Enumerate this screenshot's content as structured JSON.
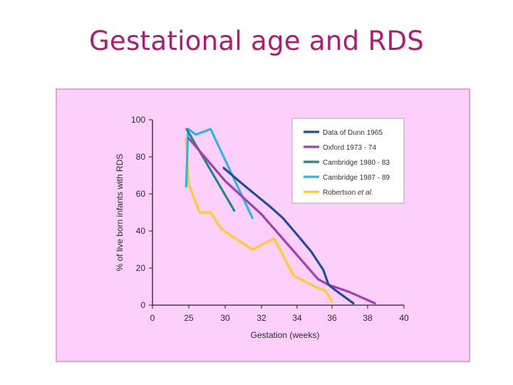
{
  "title": "Gestational age and RDS",
  "chart_data": {
    "type": "line",
    "xlabel": "Gestation (weeks)",
    "ylabel": "% of live born infants with RDS",
    "x_ticks": [
      "0",
      "25",
      "30",
      "32",
      "34",
      "36",
      "38",
      "40"
    ],
    "y_ticks": [
      0,
      20,
      40,
      60,
      80,
      100
    ],
    "ylim": [
      0,
      100
    ],
    "grid": false,
    "legend_position": "top-right",
    "series": [
      {
        "name": "Data of Dunn 1965",
        "color": "#1f4e9c",
        "points": [
          [
            29.8,
            74
          ],
          [
            31.0,
            65
          ],
          [
            32.5,
            53
          ],
          [
            33.2,
            47
          ],
          [
            34.0,
            38
          ],
          [
            34.8,
            29
          ],
          [
            35.5,
            19
          ],
          [
            35.8,
            11
          ],
          [
            36.2,
            8
          ],
          [
            37.2,
            1
          ]
        ]
      },
      {
        "name": "Oxford 1973 - 74",
        "color": "#a43fb0",
        "points": [
          [
            25.0,
            90
          ],
          [
            30.0,
            67
          ],
          [
            32.0,
            49
          ],
          [
            34.0,
            27
          ],
          [
            35.2,
            14
          ],
          [
            35.8,
            11
          ],
          [
            37.0,
            7
          ],
          [
            38.4,
            1
          ]
        ]
      },
      {
        "name": "Cambridge 1980 - 83",
        "color": "#218a87",
        "points": [
          [
            23.5,
            95
          ],
          [
            30.5,
            51
          ]
        ]
      },
      {
        "name": "Cambridge 1987 - 89",
        "color": "#29b6ea",
        "points": [
          [
            23.2,
            64
          ],
          [
            24.5,
            95
          ],
          [
            26.0,
            92
          ],
          [
            28.0,
            95
          ],
          [
            31.5,
            47
          ]
        ]
      },
      {
        "name": "Robertson et al.",
        "name_prefix": "Robertson",
        "name_suffix": "et al.",
        "color": "#ffcc29",
        "points": [
          [
            23.2,
            90
          ],
          [
            24.2,
            75
          ],
          [
            25.0,
            65
          ],
          [
            26.5,
            50
          ],
          [
            28.0,
            50
          ],
          [
            29.5,
            41
          ],
          [
            31.5,
            30
          ],
          [
            32.7,
            36
          ],
          [
            33.8,
            16
          ],
          [
            35.0,
            10
          ],
          [
            35.6,
            8
          ],
          [
            36.0,
            2
          ]
        ]
      }
    ]
  }
}
